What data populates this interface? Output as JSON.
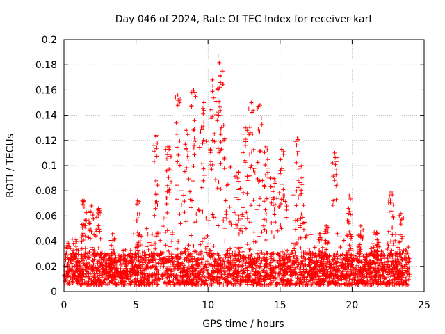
{
  "chart_data": {
    "type": "scatter",
    "title": "Day 046 of 2024, Rate Of TEC Index for receiver karl",
    "xlabel": "GPS time / hours",
    "ylabel": "ROTI / TECUs",
    "xlim": [
      0,
      25
    ],
    "ylim": [
      0,
      0.2
    ],
    "xticks": [
      "0",
      "5",
      "10",
      "15",
      "20",
      "25"
    ],
    "yticks": [
      "0",
      "0.02",
      "0.04",
      "0.06",
      "0.08",
      "0.1",
      "0.12",
      "0.14",
      "0.16",
      "0.18",
      "0.2"
    ],
    "grid": true,
    "series_color": "#ff0000",
    "marker": "plus",
    "x_extent": [
      0,
      24
    ],
    "activity_envelope": {
      "x": [
        0,
        0.5,
        1,
        1.5,
        2,
        2.5,
        3,
        3.5,
        4,
        4.5,
        5,
        5.5,
        6,
        6.5,
        7,
        7.5,
        8,
        8.5,
        9,
        9.5,
        10,
        10.5,
        11,
        11.5,
        12,
        12.5,
        13,
        13.5,
        14,
        14.5,
        15,
        15.5,
        16,
        16.5,
        17,
        17.5,
        18,
        18.5,
        19,
        19.5,
        20,
        20.5,
        21,
        21.5,
        22,
        22.5,
        23,
        23.5,
        24
      ],
      "y": [
        0.035,
        0.045,
        0.045,
        0.06,
        0.055,
        0.05,
        0.035,
        0.03,
        0.035,
        0.04,
        0.05,
        0.045,
        0.06,
        0.09,
        0.1,
        0.11,
        0.13,
        0.11,
        0.14,
        0.13,
        0.15,
        0.17,
        0.14,
        0.1,
        0.09,
        0.08,
        0.12,
        0.1,
        0.11,
        0.08,
        0.09,
        0.07,
        0.08,
        0.06,
        0.05,
        0.04,
        0.035,
        0.035,
        0.06,
        0.04,
        0.045,
        0.04,
        0.035,
        0.04,
        0.035,
        0.04,
        0.055,
        0.04,
        0.035
      ]
    },
    "peaks": [
      {
        "x": 1.4,
        "y": 0.072
      },
      {
        "x": 1.9,
        "y": 0.068
      },
      {
        "x": 2.4,
        "y": 0.066
      },
      {
        "x": 3.4,
        "y": 0.046
      },
      {
        "x": 5.1,
        "y": 0.072
      },
      {
        "x": 6.4,
        "y": 0.124
      },
      {
        "x": 7.2,
        "y": 0.115
      },
      {
        "x": 7.9,
        "y": 0.156
      },
      {
        "x": 8.5,
        "y": 0.128
      },
      {
        "x": 9.0,
        "y": 0.16
      },
      {
        "x": 9.7,
        "y": 0.15
      },
      {
        "x": 10.3,
        "y": 0.168
      },
      {
        "x": 10.7,
        "y": 0.187
      },
      {
        "x": 11.0,
        "y": 0.175
      },
      {
        "x": 12.1,
        "y": 0.095
      },
      {
        "x": 12.6,
        "y": 0.13
      },
      {
        "x": 13.0,
        "y": 0.15
      },
      {
        "x": 13.6,
        "y": 0.148
      },
      {
        "x": 14.0,
        "y": 0.115
      },
      {
        "x": 14.5,
        "y": 0.09
      },
      {
        "x": 15.1,
        "y": 0.113
      },
      {
        "x": 16.2,
        "y": 0.122
      },
      {
        "x": 16.5,
        "y": 0.1
      },
      {
        "x": 17.8,
        "y": 0.046
      },
      {
        "x": 18.2,
        "y": 0.052
      },
      {
        "x": 18.8,
        "y": 0.11
      },
      {
        "x": 19.8,
        "y": 0.076
      },
      {
        "x": 20.6,
        "y": 0.052
      },
      {
        "x": 21.7,
        "y": 0.047
      },
      {
        "x": 22.7,
        "y": 0.079
      },
      {
        "x": 23.4,
        "y": 0.062
      }
    ]
  }
}
